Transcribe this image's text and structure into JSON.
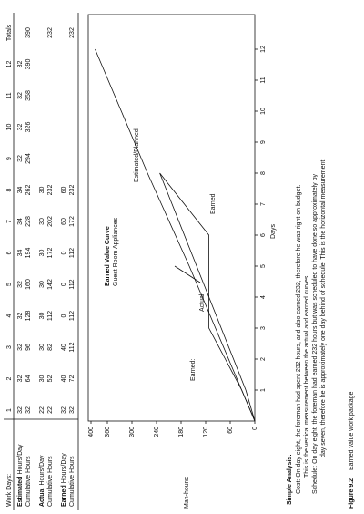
{
  "table": {
    "header": [
      "Work Days:",
      "1",
      "2",
      "3",
      "4",
      "5",
      "6",
      "7",
      "8",
      "9",
      "10",
      "11",
      "12",
      "Totals"
    ],
    "rows": [
      {
        "label_bold": "Estimated",
        "label": "Hours/Day",
        "cells": [
          32,
          32,
          32,
          32,
          32,
          34,
          34,
          34,
          32,
          32,
          32,
          32,
          null
        ]
      },
      {
        "label_bold": null,
        "label": "Cumulative Hours",
        "cells": [
          32,
          64,
          96,
          128,
          160,
          194,
          228,
          262,
          294,
          326,
          358,
          390,
          390
        ]
      },
      {
        "label_bold": "Actual",
        "label": "Hours/Day",
        "cells": [
          22,
          30,
          30,
          30,
          30,
          30,
          30,
          30,
          null,
          null,
          null,
          null,
          null
        ]
      },
      {
        "label_bold": null,
        "label": "Cumulative Hours",
        "cells": [
          22,
          52,
          82,
          112,
          142,
          172,
          202,
          232,
          null,
          null,
          null,
          null,
          232
        ]
      },
      {
        "label_bold": "Earned",
        "label": "Hours/Day",
        "cells": [
          32,
          40,
          40,
          0,
          0,
          0,
          60,
          60,
          null,
          null,
          null,
          null,
          null
        ]
      },
      {
        "label_bold": null,
        "label": "Cumulative Hours",
        "cells": [
          32,
          72,
          112,
          112,
          112,
          112,
          172,
          232,
          null,
          null,
          null,
          null,
          232
        ]
      }
    ]
  },
  "chart_data": {
    "type": "line",
    "title": "Earned Value Curve",
    "subtitle": "Guest Room Appliances",
    "y_label": "Man-hours:",
    "x_label": "Days",
    "x": [
      1,
      2,
      3,
      4,
      5,
      6,
      7,
      8,
      9,
      10,
      11,
      12
    ],
    "xlim": [
      0,
      12.5
    ],
    "xticks": [
      1,
      2,
      3,
      4,
      5,
      6,
      7,
      8,
      9,
      10,
      11,
      12
    ],
    "ylim": [
      0,
      400
    ],
    "yticks": [
      0,
      60,
      120,
      180,
      240,
      300,
      360,
      400
    ],
    "series": [
      {
        "name": "Estimated/Planned:",
        "color": "#000",
        "values": [
          32,
          64,
          96,
          128,
          160,
          194,
          228,
          262,
          294,
          326,
          358,
          390
        ]
      },
      {
        "name": "Actual:",
        "color": "#000",
        "values": [
          22,
          52,
          82,
          112,
          142,
          172,
          202,
          232,
          null,
          null,
          null,
          null
        ]
      },
      {
        "name": "Earned:",
        "color": "#000",
        "values": [
          32,
          72,
          112,
          112,
          112,
          112,
          172,
          232,
          null,
          null,
          null,
          null
        ]
      }
    ],
    "annotation": "Earned"
  },
  "analysis": {
    "title": "Simple Analysis:",
    "lines": [
      "Cost: On day eight, the foreman had spent 232 hours, and also earned 232, therefore he was right on budget.",
      "This is the vertical measurement between the actual and earned curves.",
      "Schedule: On day eight, the foreman had earned 232 hours but was scheduled to have done so approximately by",
      "day seven, therefore he is approximately one day behind of schedule. This is the horizontal measurement."
    ]
  },
  "caption": {
    "label": "Figure 9.2",
    "text": "Earned value work package"
  }
}
